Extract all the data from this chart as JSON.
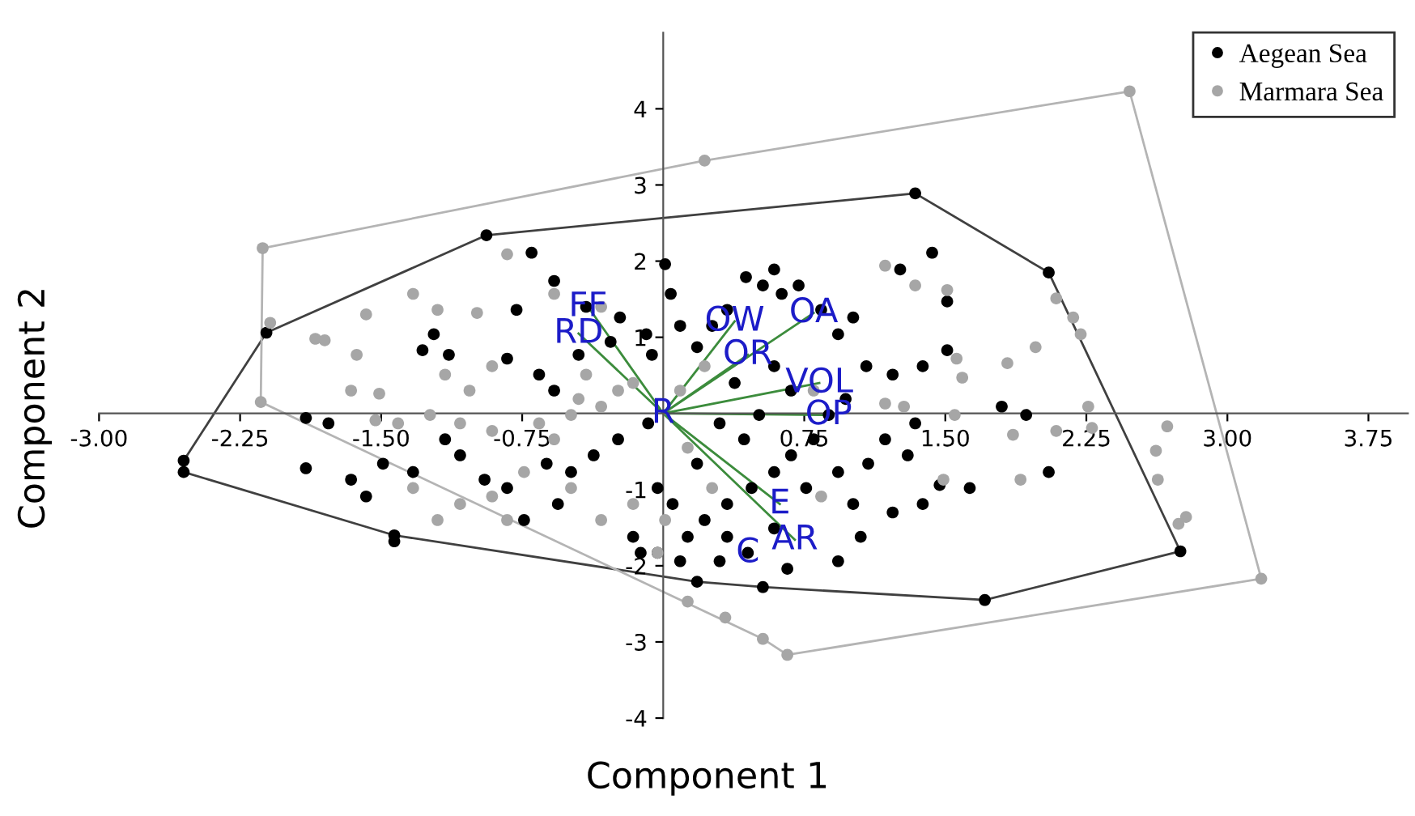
{
  "chart_data": {
    "type": "scatter",
    "xlabel": "Component 1",
    "ylabel": "Component 2",
    "xlim": [
      -3.0,
      3.96
    ],
    "ylim": [
      -4.0,
      5.0
    ],
    "xticks": [
      {
        "value": -3.0,
        "label": "-3.00"
      },
      {
        "value": -2.25,
        "label": "-2.25"
      },
      {
        "value": -1.5,
        "label": "-1.50"
      },
      {
        "value": -0.75,
        "label": "-0.75"
      },
      {
        "value": 0.75,
        "label": "0.75"
      },
      {
        "value": 1.5,
        "label": "1.50"
      },
      {
        "value": 2.25,
        "label": "2.25"
      },
      {
        "value": 3.0,
        "label": "3.00"
      },
      {
        "value": 3.75,
        "label": "3.75"
      }
    ],
    "yticks": [
      {
        "value": -4,
        "label": "-4"
      },
      {
        "value": -3,
        "label": "-3"
      },
      {
        "value": -2,
        "label": "-2"
      },
      {
        "value": -1,
        "label": "-1"
      },
      1,
      2,
      3,
      4
    ],
    "grid": false,
    "legend": "top right",
    "marker": "circle",
    "series": [
      {
        "name": "Aegean Sea",
        "color": "#000000",
        "x": [
          0.45,
          0.01,
          0.04,
          -0.7,
          -0.58,
          -0.41,
          -0.23,
          -0.78,
          -1.22,
          -1.14,
          -1.28,
          -0.83,
          -0.66,
          -0.58,
          -0.45,
          -0.28,
          -0.09,
          -0.06,
          0.09,
          0.18,
          0.26,
          0.34,
          0.44,
          0.53,
          0.59,
          0.63,
          0.72,
          0.84,
          0.93,
          1.01,
          1.26,
          1.43,
          1.51,
          1.51,
          1.38,
          1.22,
          1.08,
          0.97,
          0.88,
          0.8,
          0.68,
          0.59,
          0.47,
          0.34,
          0.22,
          0.13,
          0.34,
          0.59,
          0.76,
          0.93,
          1.09,
          1.3,
          1.47,
          1.63,
          1.8,
          1.93,
          2.05,
          1.34,
          1.18,
          1.01,
          1.22,
          1.38,
          1.05,
          0.93,
          0.66,
          0.3,
          -0.08,
          -0.24,
          -0.37,
          -0.49,
          -0.62,
          -0.83,
          -0.95,
          -1.08,
          -1.16,
          -1.33,
          -1.49,
          -1.58,
          -1.66,
          -1.78,
          -1.9,
          -0.56,
          -0.74,
          0.18,
          0.43,
          0.51,
          0.3,
          0.38,
          0.59,
          0.68,
          -0.03,
          0.05,
          -0.16,
          -0.12,
          -0.03,
          0.09,
          -1.9,
          -2.55,
          -2.55,
          -2.11,
          -0.94,
          1.34,
          2.05,
          2.75,
          1.71,
          0.53,
          0.18,
          -1.43,
          -1.43
        ],
        "values": [
          -1.83,
          1.96,
          1.57,
          2.11,
          1.74,
          1.4,
          1.26,
          1.36,
          1.04,
          0.77,
          0.83,
          0.72,
          0.51,
          0.3,
          0.77,
          0.94,
          1.04,
          0.77,
          1.15,
          0.87,
          1.15,
          1.36,
          1.79,
          1.68,
          1.89,
          1.57,
          1.68,
          1.36,
          1.04,
          1.26,
          1.89,
          2.11,
          1.47,
          0.83,
          0.62,
          0.51,
          0.62,
          0.19,
          -0.02,
          -0.34,
          -0.55,
          -0.77,
          -0.98,
          -1.19,
          -1.4,
          -1.62,
          -1.62,
          -1.51,
          -0.98,
          -0.77,
          -0.66,
          -0.55,
          -0.94,
          -0.98,
          0.09,
          -0.02,
          -0.77,
          -0.13,
          -0.34,
          -1.19,
          -1.3,
          -1.19,
          -1.62,
          -1.94,
          -2.04,
          -1.94,
          -0.13,
          -0.34,
          -0.55,
          -0.77,
          -0.66,
          -0.98,
          -0.87,
          -0.55,
          -0.34,
          -0.77,
          -0.66,
          -1.09,
          -0.87,
          -0.13,
          -0.72,
          -1.19,
          -1.4,
          -0.66,
          -0.34,
          -0.02,
          -0.13,
          0.4,
          0.62,
          0.3,
          -0.98,
          -1.19,
          -1.62,
          -1.83,
          -1.83,
          -1.94,
          -0.06,
          -0.62,
          -0.77,
          1.06,
          2.34,
          2.89,
          1.85,
          -1.81,
          -2.45,
          -2.28,
          -2.21,
          -1.6,
          -1.68
        ]
      },
      {
        "name": "Marmara Sea",
        "color": "#a6a6a6",
        "x": [
          -0.83,
          -0.58,
          -0.33,
          -0.99,
          -1.2,
          -1.33,
          -1.58,
          -1.63,
          -1.51,
          -1.16,
          -1.03,
          -0.91,
          -0.66,
          -0.91,
          -1.08,
          -1.24,
          -1.41,
          -1.53,
          -1.8,
          -1.85,
          -1.66,
          -1.33,
          -1.2,
          -1.08,
          -0.91,
          -0.74,
          -0.58,
          -0.49,
          -0.33,
          -0.24,
          -0.41,
          -0.16,
          0.09,
          0.22,
          0.13,
          0.26,
          0.01,
          -0.03,
          0.13,
          0.33,
          1.18,
          1.51,
          2.09,
          2.18,
          2.22,
          1.83,
          1.98,
          1.56,
          1.59,
          1.55,
          1.86,
          2.09,
          2.26,
          2.28,
          2.68,
          2.62,
          2.63,
          2.74,
          2.78,
          1.9,
          1.49,
          0.84,
          0.8,
          1.18,
          1.28,
          1.34,
          -0.49,
          -0.33,
          -0.83,
          -0.16,
          -0.45,
          -2.13,
          -2.09,
          -2.14,
          0.22,
          2.48,
          3.18,
          0.66,
          0.53
        ],
        "values": [
          2.09,
          1.57,
          1.4,
          1.32,
          1.36,
          1.57,
          1.3,
          0.77,
          0.26,
          0.51,
          0.3,
          0.62,
          -0.13,
          -0.23,
          -0.13,
          -0.02,
          -0.13,
          -0.09,
          0.96,
          0.98,
          0.3,
          -0.98,
          -1.4,
          -1.19,
          -1.09,
          -0.77,
          -0.34,
          -0.02,
          0.09,
          0.3,
          0.51,
          0.4,
          0.3,
          0.62,
          -0.45,
          -0.98,
          -1.4,
          -1.83,
          -2.47,
          -2.68,
          1.94,
          1.62,
          1.51,
          1.26,
          1.04,
          0.66,
          0.87,
          0.72,
          0.47,
          -0.02,
          -0.28,
          -0.23,
          0.09,
          -0.19,
          -0.17,
          -0.49,
          -0.87,
          -1.45,
          -1.36,
          -0.87,
          -0.87,
          -1.09,
          0.3,
          0.13,
          0.09,
          1.68,
          -0.98,
          -1.4,
          -1.4,
          -1.19,
          0.19,
          2.17,
          1.19,
          0.15,
          3.32,
          4.23,
          -2.17,
          -3.17,
          -2.96
        ]
      },
      {
        "type": "line",
        "color": "#404040",
        "marker": "none",
        "x": [
          -2.55,
          -2.11,
          -0.94,
          1.34,
          2.05,
          2.75
        ],
        "values": [
          -0.62,
          1.06,
          2.34,
          2.89,
          1.85,
          -1.81
        ]
      },
      {
        "type": "line",
        "color": "#404040",
        "marker": "none",
        "x": [
          -2.55,
          -2.55,
          -1.43,
          0.18,
          0.53,
          1.71,
          2.75
        ],
        "values": [
          -0.62,
          -0.77,
          -1.6,
          -2.21,
          -2.28,
          -2.45,
          -1.81
        ]
      },
      {
        "type": "line",
        "color": "#b4b4b4",
        "marker": "none",
        "x": [
          -2.14,
          -2.13,
          0.22,
          2.48,
          3.18
        ],
        "values": [
          0.15,
          2.17,
          3.32,
          4.23,
          -2.17
        ]
      },
      {
        "type": "line",
        "color": "#b4b4b4",
        "marker": "none",
        "x": [
          -2.14,
          0.53,
          0.66,
          3.18
        ],
        "values": [
          0.15,
          -2.96,
          -3.17,
          -2.17
        ]
      },
      {
        "type": "line",
        "color": "#3c8c3c",
        "marker": "none",
        "x": [
          0,
          -0.4,
          null,
          0,
          -0.45,
          null,
          0,
          0.38,
          null,
          0,
          0.8,
          null,
          0,
          0.45,
          null,
          0,
          0.83,
          null,
          0,
          0.88,
          null,
          0,
          0.62,
          null,
          0,
          0.7
        ],
        "values": [
          0,
          1.4,
          null,
          0,
          1.05,
          null,
          0,
          1.21,
          null,
          0,
          1.32,
          null,
          0,
          0.77,
          null,
          0,
          0.4,
          null,
          0,
          -0.02,
          null,
          0,
          -1.19,
          null,
          0,
          -1.66
        ]
      }
    ],
    "annotations": [
      {
        "text": "FF",
        "x": -0.4,
        "y": 1.4
      },
      {
        "text": "RD",
        "x": -0.45,
        "y": 1.05
      },
      {
        "text": "OW",
        "x": 0.38,
        "y": 1.21
      },
      {
        "text": "OA",
        "x": 0.8,
        "y": 1.32
      },
      {
        "text": "OR",
        "x": 0.45,
        "y": 0.77
      },
      {
        "text": "VOL",
        "x": 0.83,
        "y": 0.4
      },
      {
        "text": "OP",
        "x": 0.88,
        "y": -0.02
      },
      {
        "text": "R",
        "x": 0,
        "y": 0
      },
      {
        "text": "E",
        "x": 0.62,
        "y": -1.19
      },
      {
        "text": "AR",
        "x": 0.7,
        "y": -1.66
      },
      {
        "text": "C",
        "x": 0.45,
        "y": -1.83
      }
    ]
  }
}
